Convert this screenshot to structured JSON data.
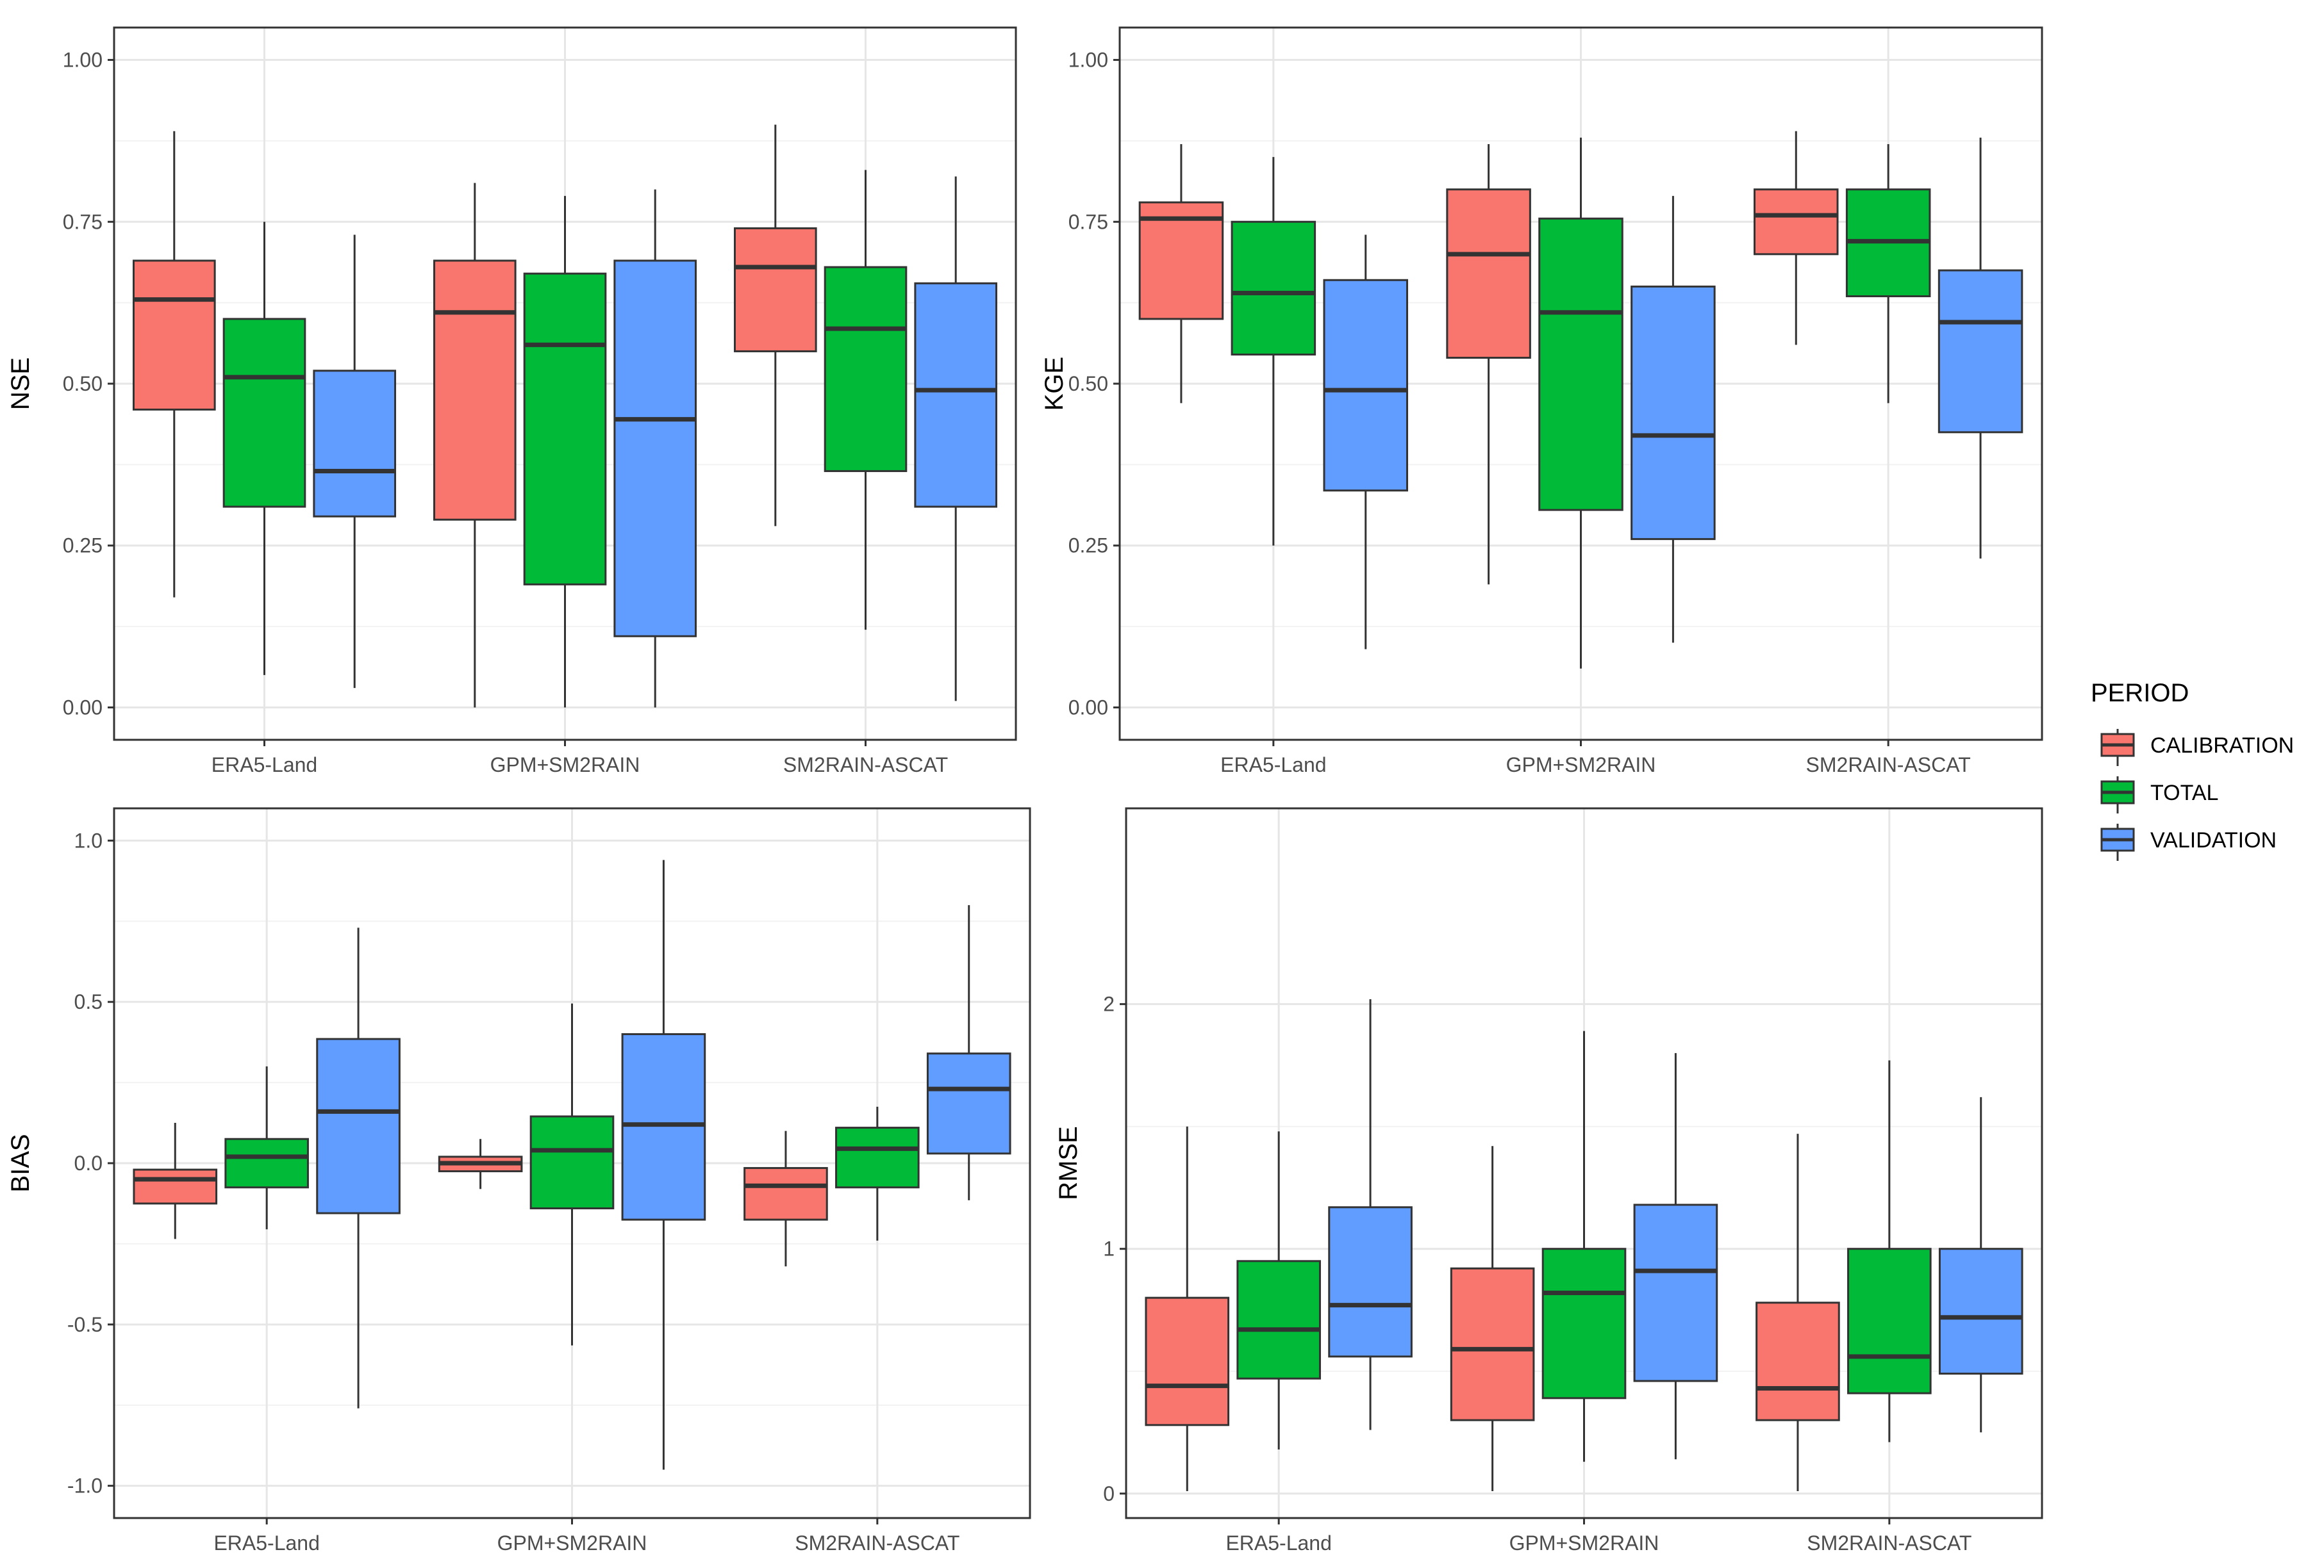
{
  "legend": {
    "title": "PERIOD",
    "placement": "right",
    "entries": [
      {
        "label": "CALIBRATION",
        "color": "#F8766D"
      },
      {
        "label": "TOTAL",
        "color": "#00BA38"
      },
      {
        "label": "VALIDATION",
        "color": "#619CFF"
      }
    ]
  },
  "chart_data": [
    {
      "type": "box",
      "ylabel": "NSE",
      "xlabel": "",
      "ylim": [
        -0.05,
        1.05
      ],
      "yticks": [
        0,
        0.25,
        0.5,
        0.75,
        1
      ],
      "ytick_labels": [
        "0.00",
        "0.25",
        "0.50",
        "0.75",
        "1.00"
      ],
      "grid": true,
      "categories": [
        "ERA5-Land",
        "GPM+SM2RAIN",
        "SM2RAIN-ASCAT"
      ],
      "series": [
        {
          "name": "CALIBRATION",
          "color": "#F8766D",
          "boxes": [
            {
              "min": 0.17,
              "q1": 0.46,
              "median": 0.63,
              "q3": 0.69,
              "max": 0.89
            },
            {
              "min": 0.0,
              "q1": 0.29,
              "median": 0.61,
              "q3": 0.69,
              "max": 0.81
            },
            {
              "min": 0.28,
              "q1": 0.55,
              "median": 0.68,
              "q3": 0.74,
              "max": 0.9
            }
          ]
        },
        {
          "name": "TOTAL",
          "color": "#00BA38",
          "boxes": [
            {
              "min": 0.05,
              "q1": 0.31,
              "median": 0.51,
              "q3": 0.6,
              "max": 0.75
            },
            {
              "min": 0.0,
              "q1": 0.19,
              "median": 0.56,
              "q3": 0.67,
              "max": 0.79
            },
            {
              "min": 0.12,
              "q1": 0.365,
              "median": 0.585,
              "q3": 0.68,
              "max": 0.83
            }
          ]
        },
        {
          "name": "VALIDATION",
          "color": "#619CFF",
          "boxes": [
            {
              "min": 0.03,
              "q1": 0.295,
              "median": 0.365,
              "q3": 0.52,
              "max": 0.73
            },
            {
              "min": 0.0,
              "q1": 0.11,
              "median": 0.445,
              "q3": 0.69,
              "max": 0.8
            },
            {
              "min": 0.01,
              "q1": 0.31,
              "median": 0.49,
              "q3": 0.655,
              "max": 0.82
            }
          ]
        }
      ]
    },
    {
      "type": "box",
      "ylabel": "KGE",
      "xlabel": "",
      "ylim": [
        -0.05,
        1.05
      ],
      "yticks": [
        0,
        0.25,
        0.5,
        0.75,
        1
      ],
      "ytick_labels": [
        "0.00",
        "0.25",
        "0.50",
        "0.75",
        "1.00"
      ],
      "grid": true,
      "categories": [
        "ERA5-Land",
        "GPM+SM2RAIN",
        "SM2RAIN-ASCAT"
      ],
      "series": [
        {
          "name": "CALIBRATION",
          "color": "#F8766D",
          "boxes": [
            {
              "min": 0.47,
              "q1": 0.6,
              "median": 0.755,
              "q3": 0.78,
              "max": 0.87
            },
            {
              "min": 0.19,
              "q1": 0.54,
              "median": 0.7,
              "q3": 0.8,
              "max": 0.87
            },
            {
              "min": 0.56,
              "q1": 0.7,
              "median": 0.76,
              "q3": 0.8,
              "max": 0.89
            }
          ]
        },
        {
          "name": "TOTAL",
          "color": "#00BA38",
          "boxes": [
            {
              "min": 0.25,
              "q1": 0.545,
              "median": 0.64,
              "q3": 0.75,
              "max": 0.85
            },
            {
              "min": 0.06,
              "q1": 0.305,
              "median": 0.61,
              "q3": 0.755,
              "max": 0.88
            },
            {
              "min": 0.47,
              "q1": 0.635,
              "median": 0.72,
              "q3": 0.8,
              "max": 0.87
            }
          ]
        },
        {
          "name": "VALIDATION",
          "color": "#619CFF",
          "boxes": [
            {
              "min": 0.09,
              "q1": 0.335,
              "median": 0.49,
              "q3": 0.66,
              "max": 0.73
            },
            {
              "min": 0.1,
              "q1": 0.26,
              "median": 0.42,
              "q3": 0.65,
              "max": 0.79
            },
            {
              "min": 0.23,
              "q1": 0.425,
              "median": 0.595,
              "q3": 0.675,
              "max": 0.88
            }
          ]
        }
      ]
    },
    {
      "type": "box",
      "ylabel": "BIAS",
      "xlabel": "",
      "ylim": [
        -1.1,
        1.1
      ],
      "yticks": [
        -1,
        -0.5,
        0,
        0.5,
        1
      ],
      "ytick_labels": [
        "-1.0",
        "-0.5",
        "0.0",
        "0.5",
        "1.0"
      ],
      "grid": true,
      "categories": [
        "ERA5-Land",
        "GPM+SM2RAIN",
        "SM2RAIN-ASCAT"
      ],
      "series": [
        {
          "name": "CALIBRATION",
          "color": "#F8766D",
          "boxes": [
            {
              "min": -0.235,
              "q1": -0.125,
              "median": -0.05,
              "q3": -0.02,
              "max": 0.125
            },
            {
              "min": -0.08,
              "q1": -0.025,
              "median": 0.0,
              "q3": 0.02,
              "max": 0.075
            },
            {
              "min": -0.32,
              "q1": -0.175,
              "median": -0.07,
              "q3": -0.015,
              "max": 0.1
            }
          ]
        },
        {
          "name": "TOTAL",
          "color": "#00BA38",
          "boxes": [
            {
              "min": -0.205,
              "q1": -0.075,
              "median": 0.02,
              "q3": 0.075,
              "max": 0.3
            },
            {
              "min": -0.565,
              "q1": -0.14,
              "median": 0.04,
              "q3": 0.145,
              "max": 0.495
            },
            {
              "min": -0.24,
              "q1": -0.075,
              "median": 0.045,
              "q3": 0.11,
              "max": 0.175
            }
          ]
        },
        {
          "name": "VALIDATION",
          "color": "#619CFF",
          "boxes": [
            {
              "min": -0.76,
              "q1": -0.155,
              "median": 0.16,
              "q3": 0.385,
              "max": 0.73
            },
            {
              "min": -0.95,
              "q1": -0.175,
              "median": 0.12,
              "q3": 0.4,
              "max": 0.94
            },
            {
              "min": -0.115,
              "q1": 0.03,
              "median": 0.23,
              "q3": 0.34,
              "max": 0.8
            }
          ]
        }
      ]
    },
    {
      "type": "box",
      "ylabel": "RMSE",
      "xlabel": "",
      "ylim": [
        -0.1,
        2.8
      ],
      "yticks": [
        0,
        1,
        2
      ],
      "ytick_labels": [
        "0",
        "1",
        "2"
      ],
      "grid": true,
      "categories": [
        "ERA5-Land",
        "GPM+SM2RAIN",
        "SM2RAIN-ASCAT"
      ],
      "series": [
        {
          "name": "CALIBRATION",
          "color": "#F8766D",
          "boxes": [
            {
              "min": 0.01,
              "q1": 0.28,
              "median": 0.44,
              "q3": 0.8,
              "max": 1.5
            },
            {
              "min": 0.01,
              "q1": 0.3,
              "median": 0.59,
              "q3": 0.92,
              "max": 1.42
            },
            {
              "min": 0.01,
              "q1": 0.3,
              "median": 0.43,
              "q3": 0.78,
              "max": 1.47
            }
          ]
        },
        {
          "name": "TOTAL",
          "color": "#00BA38",
          "boxes": [
            {
              "min": 0.18,
              "q1": 0.47,
              "median": 0.67,
              "q3": 0.95,
              "max": 1.48
            },
            {
              "min": 0.13,
              "q1": 0.39,
              "median": 0.82,
              "q3": 1.0,
              "max": 1.89
            },
            {
              "min": 0.21,
              "q1": 0.41,
              "median": 0.56,
              "q3": 1.0,
              "max": 1.77
            }
          ]
        },
        {
          "name": "VALIDATION",
          "color": "#619CFF",
          "boxes": [
            {
              "min": 0.26,
              "q1": 0.56,
              "median": 0.77,
              "q3": 1.17,
              "max": 2.02
            },
            {
              "min": 0.14,
              "q1": 0.46,
              "median": 0.91,
              "q3": 1.18,
              "max": 1.8
            },
            {
              "min": 0.25,
              "q1": 0.49,
              "median": 0.72,
              "q3": 1.0,
              "max": 1.62
            }
          ]
        }
      ]
    }
  ]
}
